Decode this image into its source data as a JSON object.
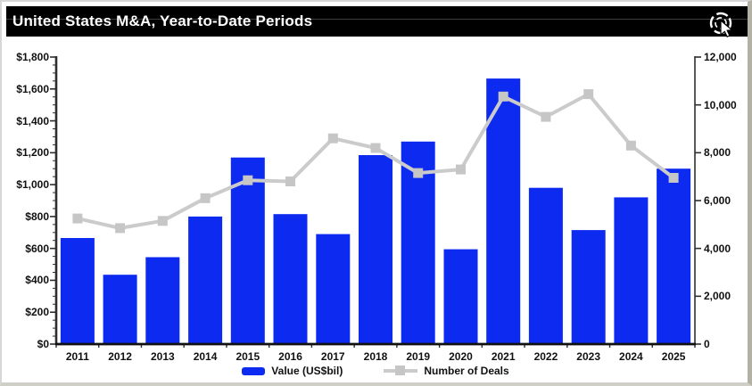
{
  "window": {
    "title": "United States M&A, Year-to-Date Periods",
    "icon": "interactive-click-icon"
  },
  "colors": {
    "bar": "#0d2af0",
    "line": "#cbcbcb",
    "marker": "#c6c6c6",
    "axis": "#2e2e2e",
    "titlebar_bg": "#000000",
    "title_text": "#ffffff"
  },
  "legend": {
    "items": [
      {
        "label": "Value (US$bil)",
        "type": "bar",
        "color": "#0d2af0"
      },
      {
        "label": "Number of Deals",
        "type": "line",
        "color": "#c6c6c6"
      }
    ]
  },
  "chart_data": {
    "type": "bar",
    "title": "United States M&A, Year-to-Date Periods",
    "categories": [
      "2011",
      "2012",
      "2013",
      "2014",
      "2015",
      "2016",
      "2017",
      "2018",
      "2019",
      "2020",
      "2021",
      "2022",
      "2023",
      "2024",
      "2025"
    ],
    "series": [
      {
        "name": "Value (US$bil)",
        "type": "bar",
        "axis": "left",
        "values": [
          665,
          435,
          545,
          800,
          1170,
          815,
          690,
          1185,
          1270,
          595,
          1665,
          980,
          715,
          920,
          1100
        ]
      },
      {
        "name": "Number of Deals",
        "type": "line",
        "axis": "right",
        "values": [
          5250,
          4850,
          5150,
          6100,
          6850,
          6800,
          8600,
          8200,
          7150,
          7300,
          10350,
          9500,
          10450,
          8300,
          6950
        ]
      }
    ],
    "left_axis": {
      "label": "Value (US$bil)",
      "min": 0,
      "max": 1800,
      "major_step": 200,
      "minor_step": 50,
      "tick_labels": [
        "$0",
        "$200",
        "$400",
        "$600",
        "$800",
        "$1,000",
        "$1,200",
        "$1,400",
        "$1,600",
        "$1,800"
      ]
    },
    "right_axis": {
      "label": "Number of Deals",
      "min": 0,
      "max": 12000,
      "major_step": 2000,
      "tick_labels": [
        "0",
        "2,000",
        "4,000",
        "6,000",
        "8,000",
        "10,000",
        "12,000"
      ]
    },
    "grid": false,
    "legend_position": "bottom"
  }
}
